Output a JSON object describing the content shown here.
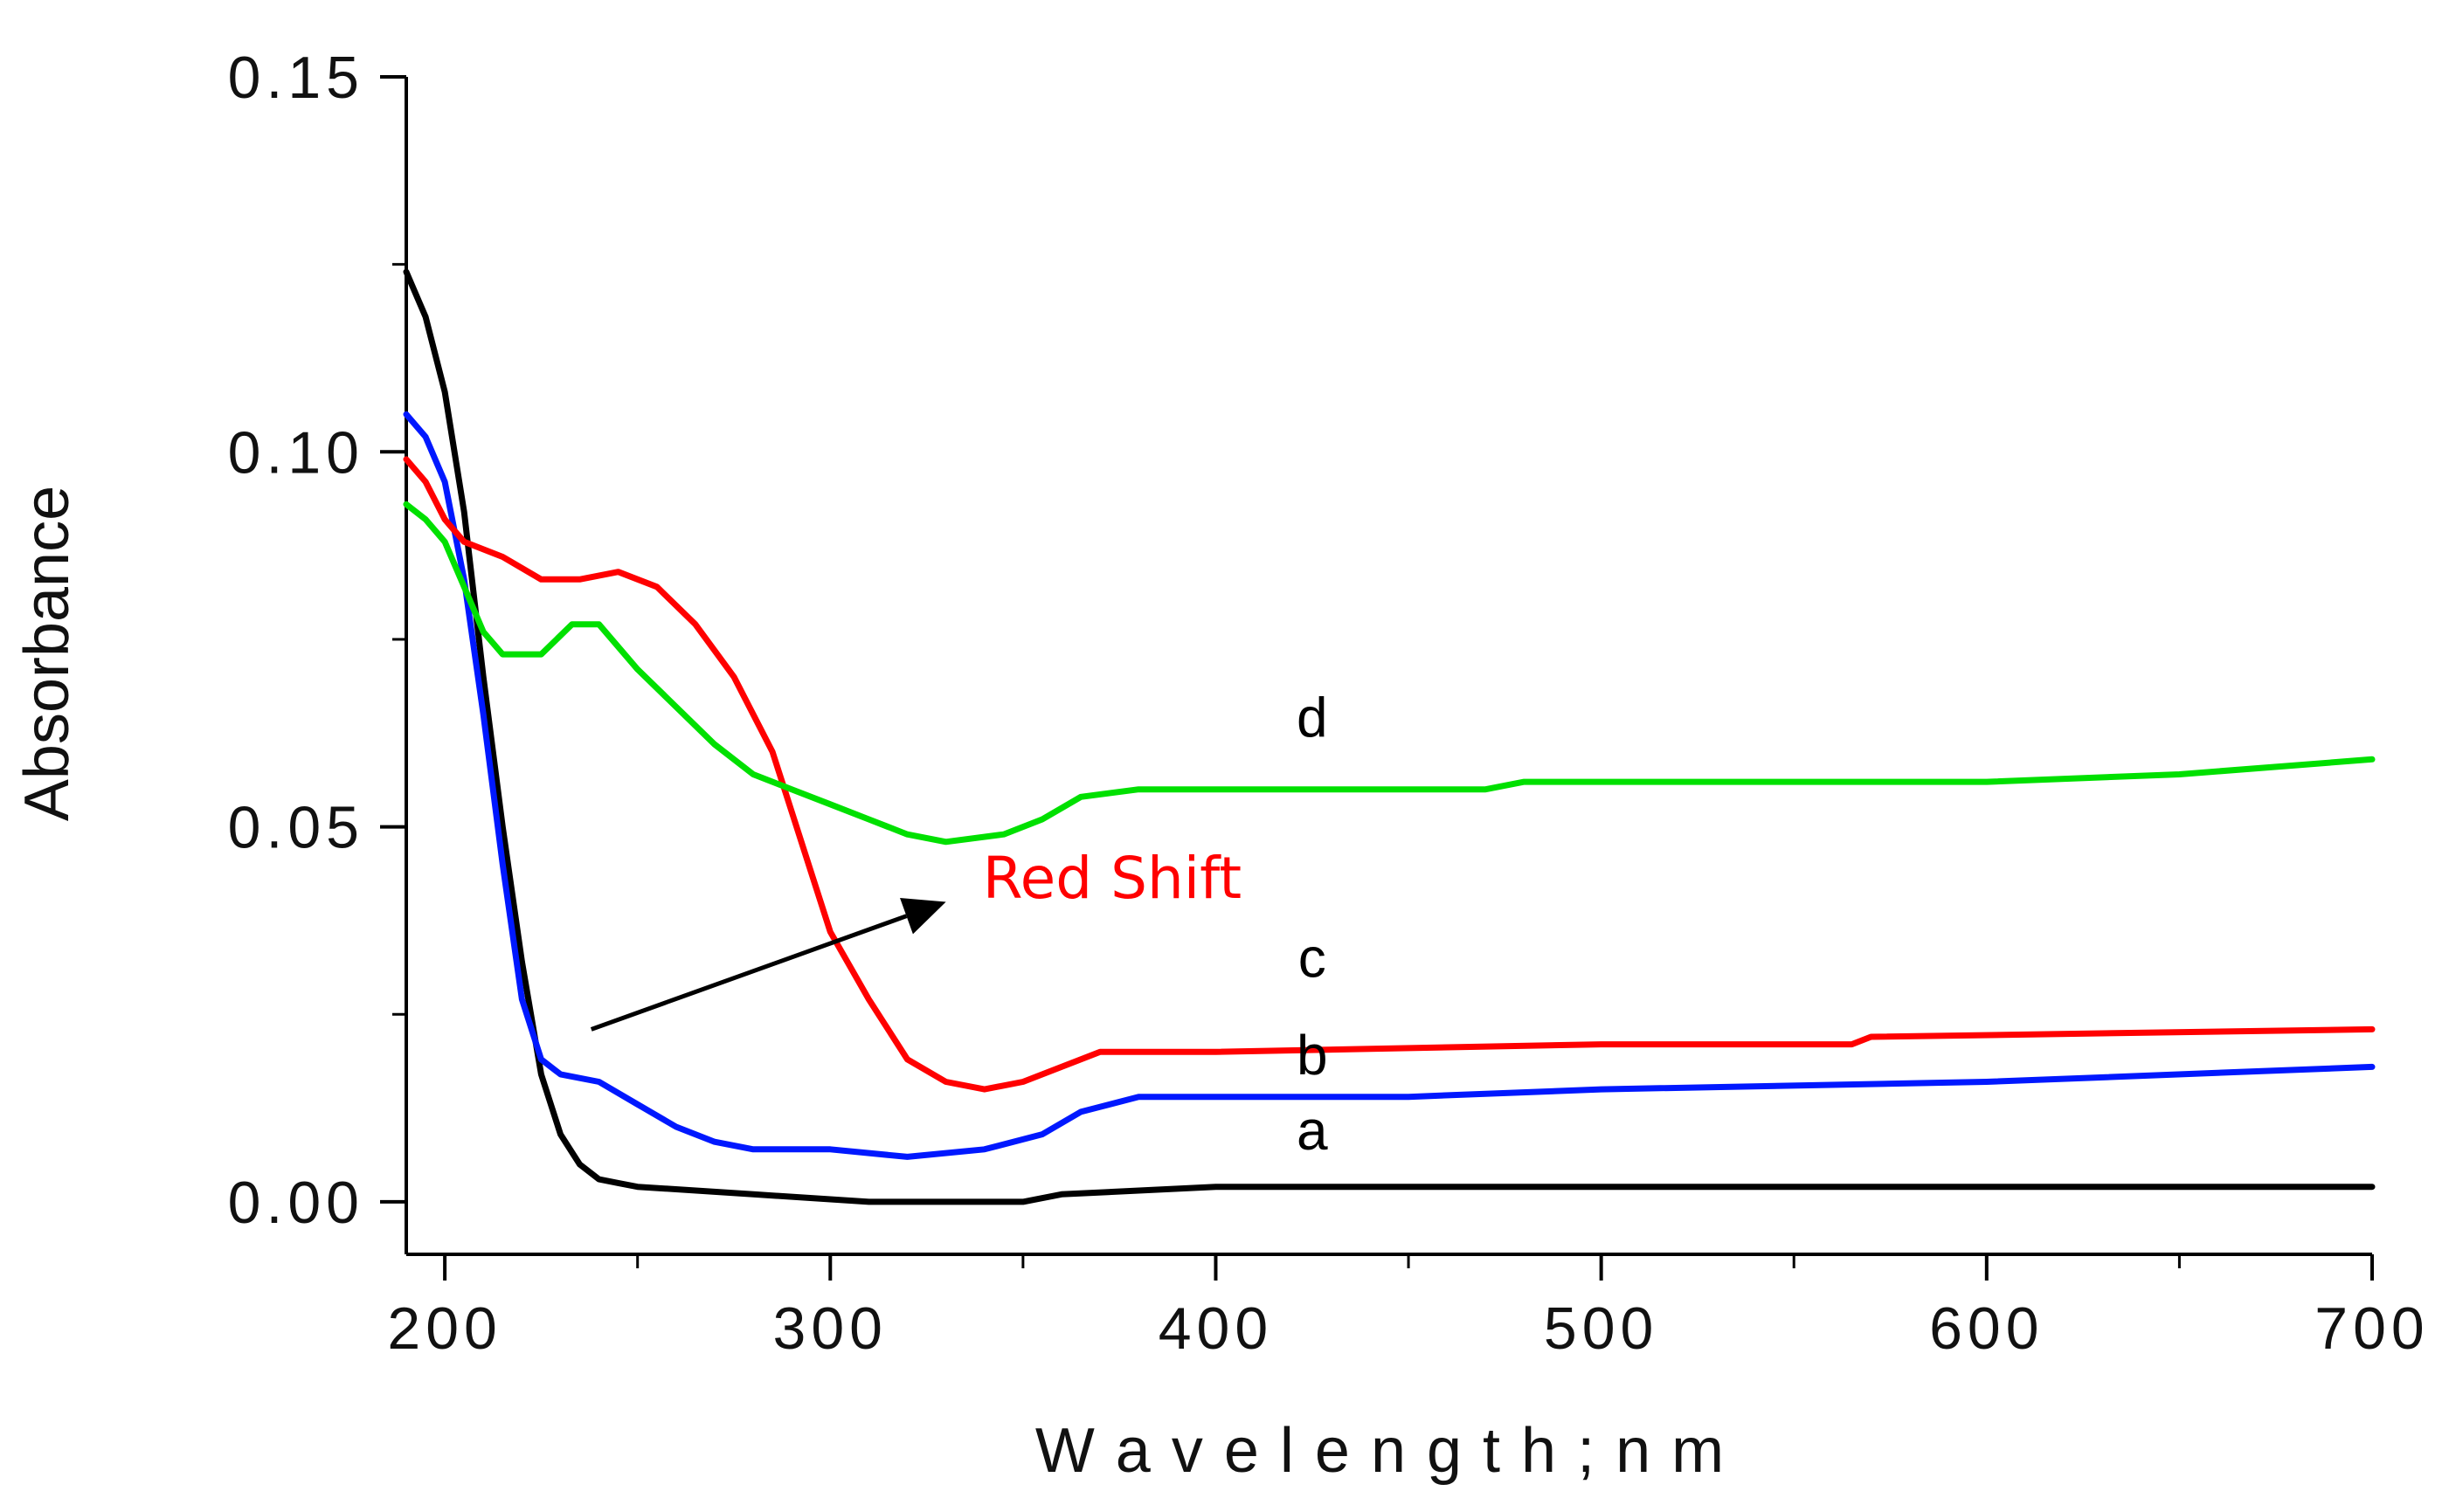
{
  "chart_data": {
    "type": "line",
    "title": "",
    "xlabel": "W a v e l e n g t h ;  n m",
    "ylabel": "Absorbance",
    "xlim": [
      190,
      700
    ],
    "ylim": [
      -0.007,
      0.15
    ],
    "x_ticks": [
      200,
      300,
      400,
      500,
      600,
      700
    ],
    "x_tick_labels": [
      "200",
      "300",
      "400",
      "500",
      "600",
      "700"
    ],
    "y_ticks": [
      0.0,
      0.05,
      0.1,
      0.15
    ],
    "y_tick_labels": [
      "0.00",
      "0.05",
      "0.10",
      "0.15"
    ],
    "grid": false,
    "series": [
      {
        "name": "a",
        "color": "#000000",
        "points": [
          [
            190,
            0.124
          ],
          [
            195,
            0.118
          ],
          [
            200,
            0.108
          ],
          [
            205,
            0.092
          ],
          [
            210,
            0.07
          ],
          [
            215,
            0.05
          ],
          [
            220,
            0.032
          ],
          [
            225,
            0.017
          ],
          [
            230,
            0.009
          ],
          [
            235,
            0.005
          ],
          [
            240,
            0.003
          ],
          [
            245,
            0.0025
          ],
          [
            250,
            0.002
          ],
          [
            280,
            0.001
          ],
          [
            310,
            0.0
          ],
          [
            350,
            0.0
          ],
          [
            360,
            0.001
          ],
          [
            400,
            0.002
          ],
          [
            700,
            0.002
          ]
        ]
      },
      {
        "name": "b",
        "color": "#0018ff",
        "points": [
          [
            190,
            0.105
          ],
          [
            195,
            0.102
          ],
          [
            200,
            0.096
          ],
          [
            205,
            0.083
          ],
          [
            210,
            0.065
          ],
          [
            215,
            0.045
          ],
          [
            220,
            0.027
          ],
          [
            225,
            0.019
          ],
          [
            230,
            0.017
          ],
          [
            240,
            0.016
          ],
          [
            250,
            0.013
          ],
          [
            260,
            0.01
          ],
          [
            270,
            0.008
          ],
          [
            280,
            0.007
          ],
          [
            300,
            0.007
          ],
          [
            320,
            0.006
          ],
          [
            340,
            0.007
          ],
          [
            355,
            0.009
          ],
          [
            365,
            0.012
          ],
          [
            380,
            0.014
          ],
          [
            450,
            0.014
          ],
          [
            500,
            0.015
          ],
          [
            600,
            0.016
          ],
          [
            700,
            0.018
          ]
        ]
      },
      {
        "name": "c",
        "color": "#ff0000",
        "points": [
          [
            190,
            0.099
          ],
          [
            195,
            0.096
          ],
          [
            200,
            0.091
          ],
          [
            205,
            0.088
          ],
          [
            215,
            0.086
          ],
          [
            225,
            0.083
          ],
          [
            235,
            0.083
          ],
          [
            245,
            0.084
          ],
          [
            255,
            0.082
          ],
          [
            265,
            0.077
          ],
          [
            275,
            0.07
          ],
          [
            285,
            0.06
          ],
          [
            290,
            0.052
          ],
          [
            295,
            0.044
          ],
          [
            300,
            0.036
          ],
          [
            310,
            0.027
          ],
          [
            320,
            0.019
          ],
          [
            330,
            0.016
          ],
          [
            340,
            0.015
          ],
          [
            350,
            0.016
          ],
          [
            360,
            0.018
          ],
          [
            370,
            0.02
          ],
          [
            400,
            0.02
          ],
          [
            500,
            0.021
          ],
          [
            565,
            0.021
          ],
          [
            570,
            0.022
          ],
          [
            700,
            0.023
          ]
        ]
      },
      {
        "name": "d",
        "color": "#00e000",
        "points": [
          [
            190,
            0.093
          ],
          [
            195,
            0.091
          ],
          [
            200,
            0.088
          ],
          [
            205,
            0.082
          ],
          [
            210,
            0.076
          ],
          [
            215,
            0.073
          ],
          [
            225,
            0.073
          ],
          [
            233,
            0.077
          ],
          [
            240,
            0.077
          ],
          [
            250,
            0.071
          ],
          [
            260,
            0.066
          ],
          [
            270,
            0.061
          ],
          [
            280,
            0.057
          ],
          [
            290,
            0.055
          ],
          [
            300,
            0.053
          ],
          [
            310,
            0.051
          ],
          [
            320,
            0.049
          ],
          [
            330,
            0.048
          ],
          [
            345,
            0.049
          ],
          [
            355,
            0.051
          ],
          [
            365,
            0.054
          ],
          [
            380,
            0.055
          ],
          [
            450,
            0.055
          ],
          [
            470,
            0.055
          ],
          [
            480,
            0.056
          ],
          [
            600,
            0.056
          ],
          [
            650,
            0.057
          ],
          [
            700,
            0.059
          ]
        ]
      }
    ],
    "annotations": [
      {
        "text": "Red Shift",
        "color": "#ff0000",
        "x": 335,
        "y": 0.0405,
        "arrow_from": [
          238,
          0.023
        ],
        "arrow_to": [
          330,
          0.04
        ]
      }
    ],
    "series_labels": [
      {
        "text": "a",
        "x": 425,
        "y": 0.007
      },
      {
        "text": "b",
        "x": 425,
        "y": 0.017
      },
      {
        "text": "c",
        "x": 425,
        "y": 0.03
      },
      {
        "text": "d",
        "x": 425,
        "y": 0.062
      }
    ]
  }
}
